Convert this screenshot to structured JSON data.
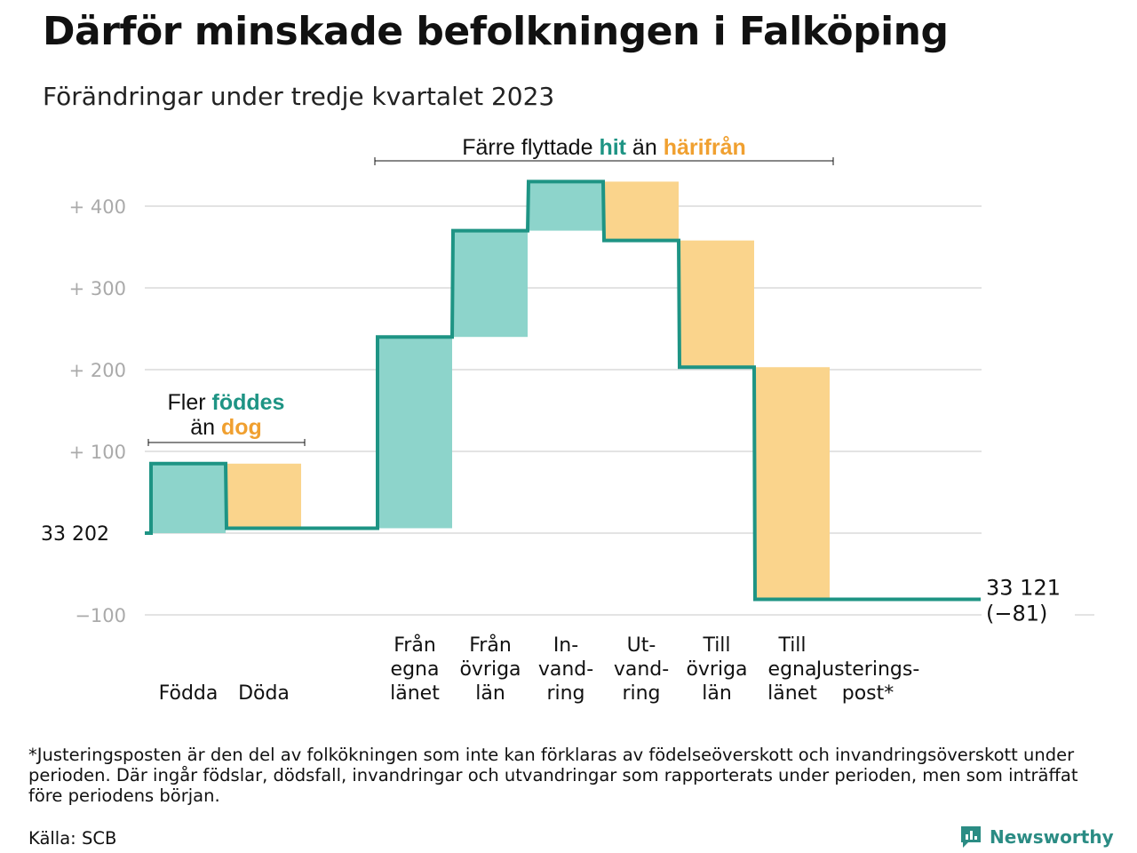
{
  "title": "Därför minskade befolkningen i Falköping",
  "subtitle": "Förändringar under tredje kvartalet 2023",
  "colors": {
    "inflow": "#8dd4cb",
    "outflow": "#fad48c",
    "line": "#1e9484",
    "grid": "#e3e3e3",
    "tick_text": "#aaaaaa",
    "hit_text": "#1e9484",
    "harifran_text": "#f0a030"
  },
  "annotations": {
    "births_deaths": {
      "line1_prefix": "Fler",
      "line1_highlight": "föddes",
      "line2_prefix": "än",
      "line2_highlight": "dog"
    },
    "migration": {
      "prefix": "Färre flyttade",
      "highlight1": "hit",
      "middle": "än",
      "highlight2": "härifrån"
    }
  },
  "chart_data": {
    "type": "waterfall",
    "title": "Därför minskade befolkningen i Falköping",
    "subtitle": "Förändringar under tredje kvartalet 2023",
    "start_value": 33202,
    "start_label": "33  202",
    "end_value": 33121,
    "end_label": "33 121",
    "net_change_label": "(−81)",
    "y_ticks": [
      {
        "value": 400,
        "label": "+  400"
      },
      {
        "value": 300,
        "label": "+  300"
      },
      {
        "value": 200,
        "label": "+  200"
      },
      {
        "value": 100,
        "label": "+  100"
      },
      {
        "value": 0,
        "label": ""
      },
      {
        "value": -100,
        "label": "−100"
      }
    ],
    "ylim": [
      -100,
      400
    ],
    "grid": true,
    "steps": [
      {
        "category": [
          "Födda"
        ],
        "change": 85,
        "kind": "inflow"
      },
      {
        "category": [
          "Döda"
        ],
        "change": -79,
        "kind": "outflow"
      },
      {
        "category": [
          "Från",
          "egna",
          "länet"
        ],
        "change": 234,
        "kind": "inflow"
      },
      {
        "category": [
          "Från",
          "övriga",
          "län"
        ],
        "change": 130,
        "kind": "inflow"
      },
      {
        "category": [
          "In-",
          "vand-",
          "ring"
        ],
        "change": 60,
        "kind": "inflow"
      },
      {
        "category": [
          "Ut-",
          "vand-",
          "ring"
        ],
        "change": -72,
        "kind": "outflow"
      },
      {
        "category": [
          "Till",
          "övriga",
          "län"
        ],
        "change": -155,
        "kind": "outflow"
      },
      {
        "category": [
          "Till",
          "egna",
          "länet"
        ],
        "change": -284,
        "kind": "outflow"
      },
      {
        "category": [
          "Justerings-",
          "post*"
        ],
        "change": 0,
        "kind": "adjustment"
      }
    ]
  },
  "footnote": "*Justeringsposten är den del av folkökningen som inte kan förklaras av födelseöverskott och invandringsöverskott under perioden. Där ingår födslar, dödsfall, invandringar och utvandringar som rapporterats under perioden, men som inträffat före periodens början.",
  "source": "Källa: SCB",
  "brand": {
    "label": "Newsworthy",
    "icon": "newsworthy-logo-icon"
  }
}
